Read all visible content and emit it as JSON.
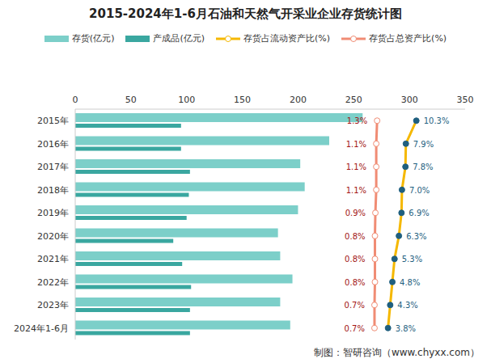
{
  "chart_data": {
    "type": "bar",
    "orientation": "horizontal",
    "title": "2015-2024年1-6月石油和天然气开采业企业存货统计图",
    "source": "制图：智研咨询（www.chyxx.com）",
    "categories": [
      "2015年",
      "2016年",
      "2017年",
      "2018年",
      "2019年",
      "2020年",
      "2021年",
      "2022年",
      "2023年",
      "2024年1-6月"
    ],
    "xlim": [
      0,
      350
    ],
    "xticks": [
      0,
      50,
      100,
      150,
      200,
      250,
      300,
      350
    ],
    "y2lim": [
      -68,
      21.5
    ],
    "grid": false,
    "legend": "top",
    "tick_labels": "x",
    "series": [
      {
        "name": "存货(亿元)",
        "type": "bar",
        "color": "#7ccfc9",
        "values": [
          258,
          228,
          202,
          206,
          200,
          182,
          184,
          195,
          184,
          193
        ]
      },
      {
        "name": "产成品(亿元)",
        "type": "bar",
        "color": "#3aa7a0",
        "values": [
          95,
          95,
          103,
          102,
          100,
          88,
          96,
          104,
          103,
          103
        ]
      },
      {
        "name": "存货占流动资产比(%)",
        "type": "line",
        "axis": "y2",
        "color": "#f5b800",
        "marker": "circle",
        "data_labels": true,
        "values": [
          10.3,
          7.9,
          7.8,
          7.0,
          6.9,
          6.3,
          5.3,
          4.8,
          4.3,
          3.8
        ],
        "value_labels": [
          "10.3%",
          "7.9%",
          "7.8%",
          "7.0%",
          "6.9%",
          "6.3%",
          "5.3%",
          "4.8%",
          "4.3%",
          "3.8%"
        ]
      },
      {
        "name": "存货占总资产比(%)",
        "type": "line",
        "axis": "y2",
        "color": "#f08c74",
        "marker": "circle",
        "data_labels": true,
        "values": [
          1.3,
          1.1,
          1.1,
          1.1,
          0.9,
          0.8,
          0.8,
          0.8,
          0.7,
          0.7
        ],
        "value_labels": [
          "1.3%",
          "1.1%",
          "1.1%",
          "1.1%",
          "0.9%",
          "0.8%",
          "0.8%",
          "0.8%",
          "0.7%",
          "0.7%"
        ]
      }
    ]
  }
}
